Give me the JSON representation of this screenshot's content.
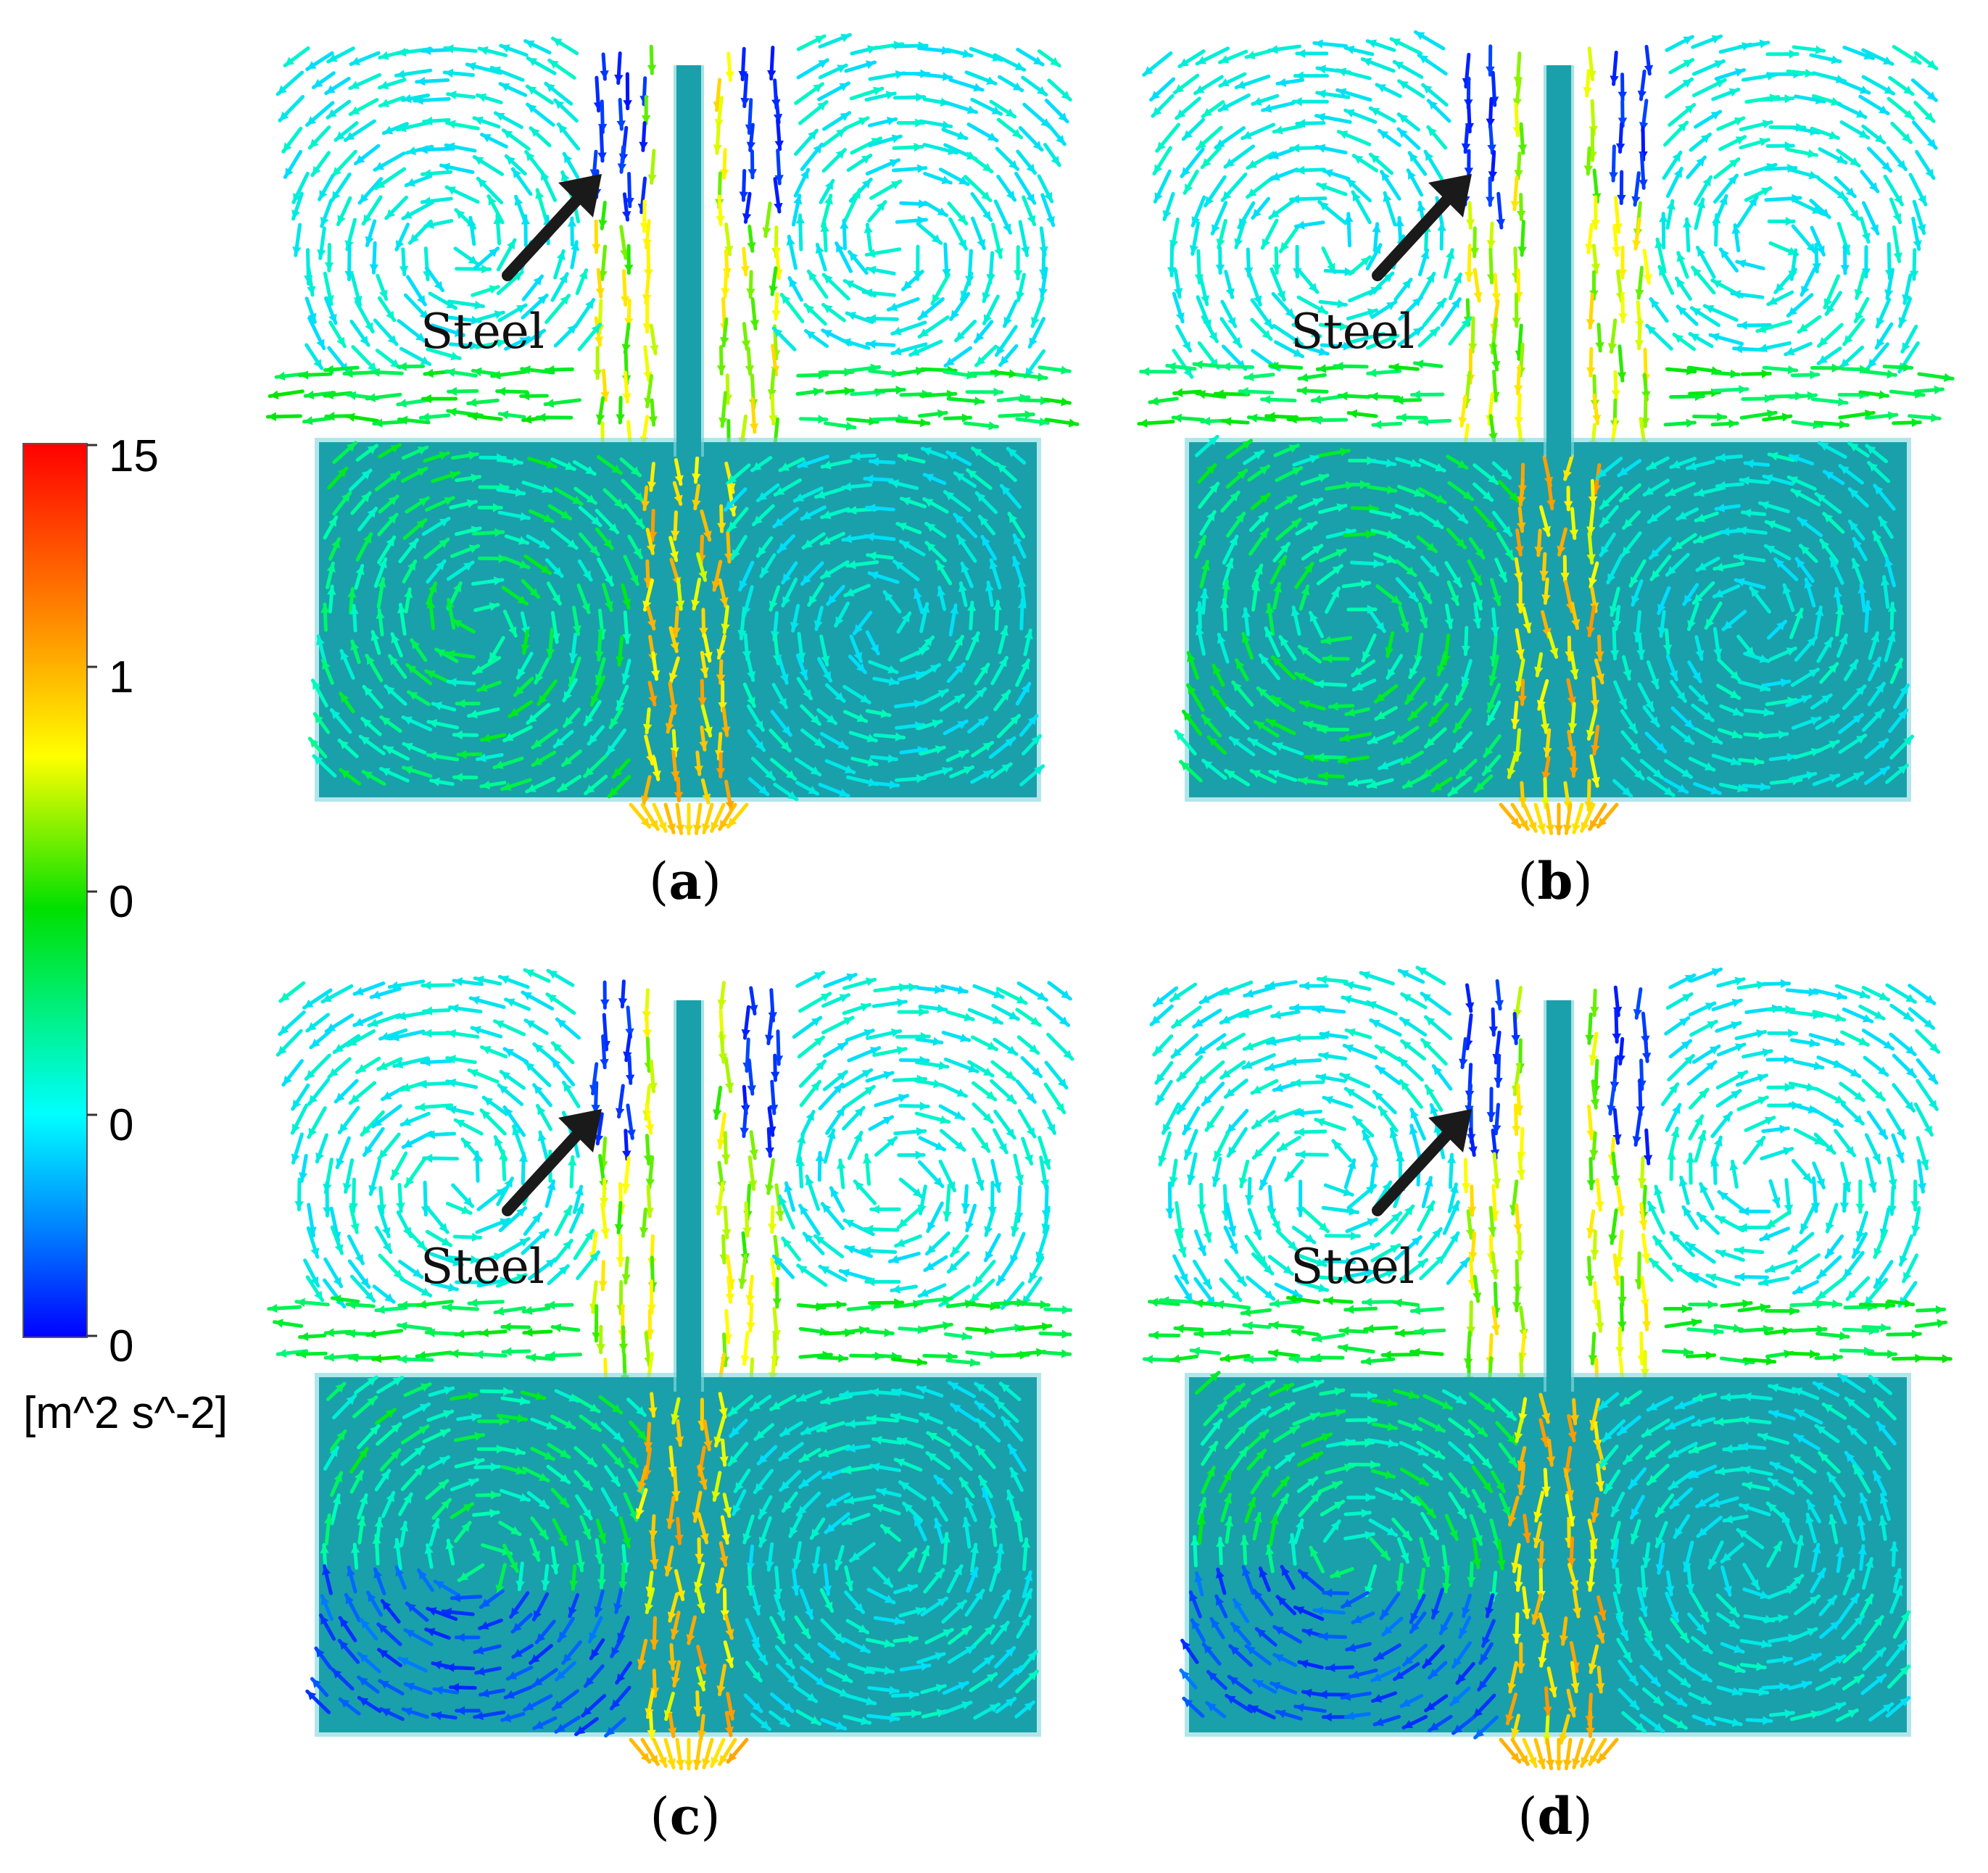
{
  "colorbar": {
    "ticks": [
      "15",
      "1",
      "0",
      "0",
      "0"
    ],
    "unit": "[m^2 s^-2]",
    "colors": [
      "#ff0000",
      "#ff8c00",
      "#ffff00",
      "#00ff00",
      "#00ffff",
      "#0080ff",
      "#0000ff"
    ]
  },
  "colors": {
    "steel": "#1aa0aa",
    "steel_light": "#7fd6dc",
    "arrow_pointer": "#1a1a1a"
  },
  "panels": [
    {
      "id": "a",
      "caption_letter": "a",
      "steel_label": "Steel",
      "bottom_mode": "wide"
    },
    {
      "id": "b",
      "caption_letter": "b",
      "steel_label": "Steel",
      "bottom_mode": "wide"
    },
    {
      "id": "c",
      "caption_letter": "c",
      "steel_label": "Steel",
      "bottom_mode": "left"
    },
    {
      "id": "d",
      "caption_letter": "d",
      "steel_label": "Steel",
      "bottom_mode": "left"
    }
  ]
}
